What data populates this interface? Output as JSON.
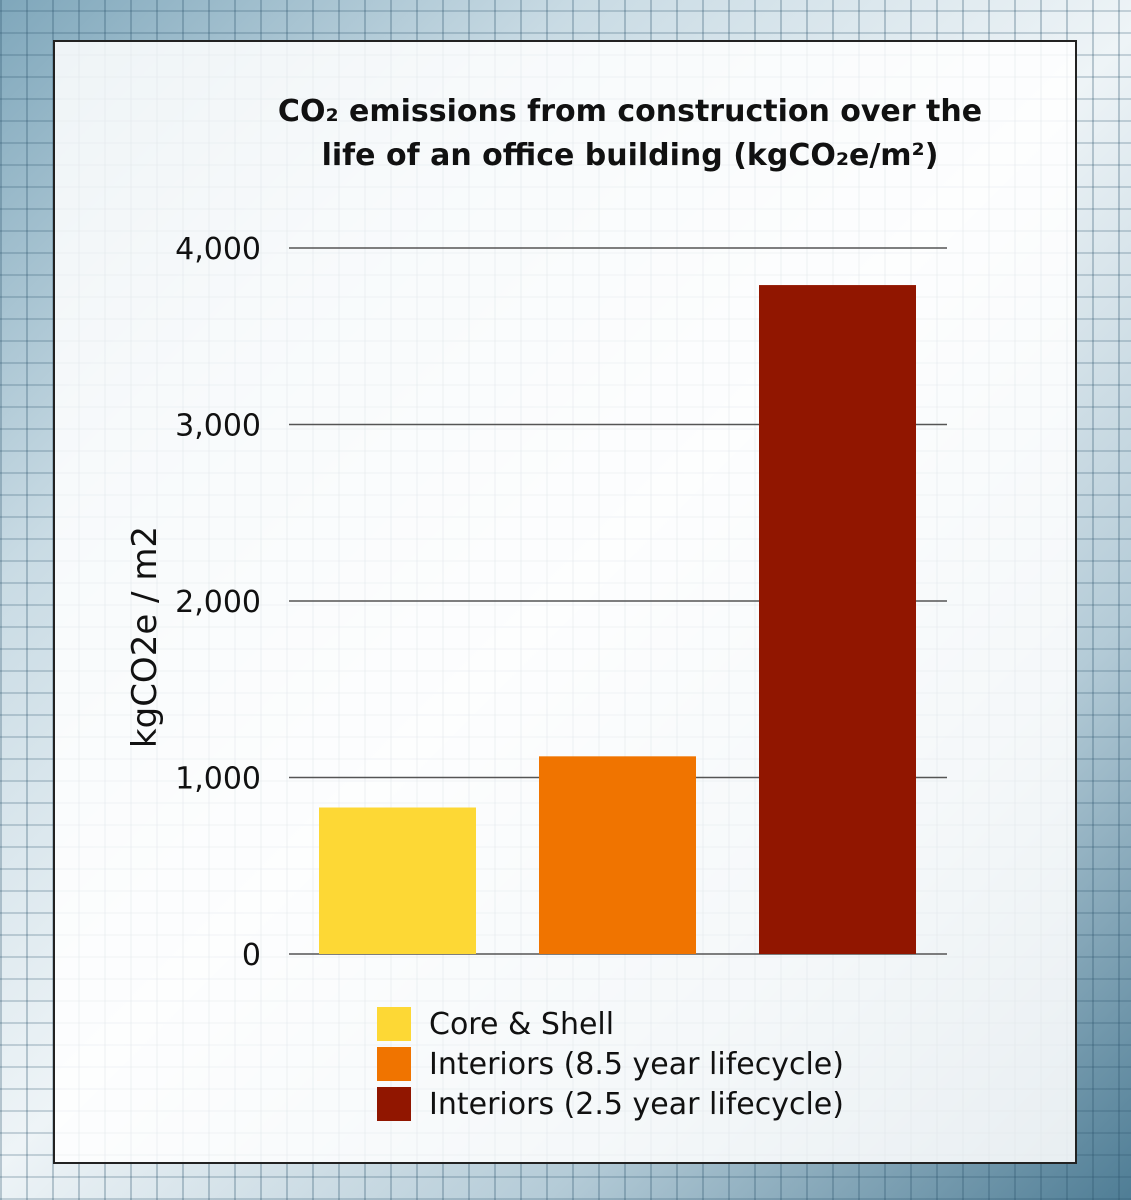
{
  "chart_data": {
    "type": "bar",
    "title_lines": [
      "CO₂ emissions from construction over the",
      "life of an office building (kgCO₂e/m²)"
    ],
    "xlabel": "",
    "ylabel": "kgCO2e / m2",
    "ylim": [
      0,
      4000
    ],
    "yticks": [
      0,
      1000,
      2000,
      3000,
      4000
    ],
    "ytick_labels": [
      "0",
      "1,000",
      "2,000",
      "3,000",
      "4,000"
    ],
    "grid": true,
    "legend_position": "bottom",
    "series": [
      {
        "name": "Core & Shell",
        "value": 830,
        "color": "#FDD835"
      },
      {
        "name": "Interiors (8.5 year lifecycle)",
        "value": 1120,
        "color": "#F07400"
      },
      {
        "name": "Interiors (2.5 year lifecycle)",
        "value": 3790,
        "color": "#911600"
      }
    ]
  }
}
